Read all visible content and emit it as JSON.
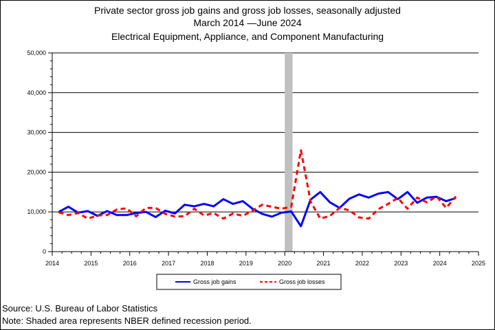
{
  "chart_data": {
    "type": "line",
    "title": "Private sector gross job gains and gross job losses, seasonally adjusted",
    "subtitle": "March 2014 —June 2024",
    "subtitle2": "Electrical Equipment, Appliance, and Component Manufacturing",
    "xlabel": "",
    "ylabel": "",
    "xlim": [
      2014,
      2025
    ],
    "ylim": [
      0,
      50000
    ],
    "x_ticks": [
      "2014",
      "2015",
      "2016",
      "2017",
      "2018",
      "2019",
      "2020",
      "2021",
      "2022",
      "2023",
      "2024",
      "2025"
    ],
    "y_ticks": [
      "0",
      "10,000",
      "20,000",
      "30,000",
      "40,000",
      "50,000"
    ],
    "grid": "horizontal",
    "legend_position": "bottom",
    "recession": {
      "start": 2020.0,
      "end": 2020.2
    },
    "x": [
      "2014-03",
      "2014-06",
      "2014-09",
      "2014-12",
      "2015-03",
      "2015-06",
      "2015-09",
      "2015-12",
      "2016-03",
      "2016-06",
      "2016-09",
      "2016-12",
      "2017-03",
      "2017-06",
      "2017-09",
      "2017-12",
      "2018-03",
      "2018-06",
      "2018-09",
      "2018-12",
      "2019-03",
      "2019-06",
      "2019-09",
      "2019-12",
      "2020-03",
      "2020-06",
      "2020-09",
      "2020-12",
      "2021-03",
      "2021-06",
      "2021-09",
      "2021-12",
      "2022-03",
      "2022-06",
      "2022-09",
      "2022-12",
      "2023-03",
      "2023-06",
      "2023-09",
      "2023-12",
      "2024-03",
      "2024-06"
    ],
    "series": [
      {
        "name": "Gross job gains",
        "color": "#0000ff",
        "style": "solid",
        "values": [
          10000,
          11300,
          9800,
          10200,
          9000,
          10200,
          9200,
          9200,
          9700,
          10000,
          8700,
          10300,
          9600,
          11800,
          11400,
          12000,
          11400,
          13200,
          12000,
          12700,
          10800,
          9500,
          8800,
          9800,
          10100,
          6400,
          13100,
          15000,
          12400,
          11000,
          13300,
          14400,
          13600,
          14600,
          15000,
          13200,
          15000,
          12300,
          13600,
          13800,
          12700,
          13500
        ]
      },
      {
        "name": "Gross job losses",
        "color": "#ff0000",
        "style": "dashed",
        "values": [
          9900,
          9200,
          9700,
          8300,
          9100,
          9200,
          10600,
          10900,
          8900,
          11000,
          11000,
          9500,
          8800,
          8900,
          10800,
          9100,
          9700,
          8300,
          9600,
          9000,
          10300,
          11800,
          11300,
          10800,
          11300,
          25500,
          12600,
          8300,
          9000,
          11000,
          10400,
          8600,
          8300,
          10700,
          12000,
          13500,
          10800,
          13600,
          12400,
          13900,
          11000,
          13900
        ]
      }
    ]
  },
  "footer": {
    "source": "Source: U.S. Bureau of Labor Statistics",
    "note": "Note: Shaded area represents NBER defined recession period."
  }
}
